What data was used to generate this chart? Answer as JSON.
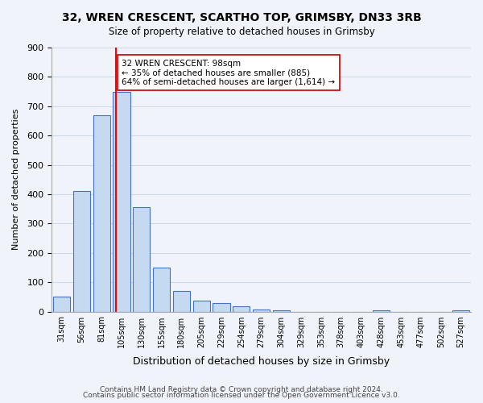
{
  "title": "32, WREN CRESCENT, SCARTHO TOP, GRIMSBY, DN33 3RB",
  "subtitle": "Size of property relative to detached houses in Grimsby",
  "xlabel": "Distribution of detached houses by size in Grimsby",
  "ylabel": "Number of detached properties",
  "bar_labels": [
    "31sqm",
    "56sqm",
    "81sqm",
    "105sqm",
    "130sqm",
    "155sqm",
    "180sqm",
    "205sqm",
    "229sqm",
    "254sqm",
    "279sqm",
    "304sqm",
    "329sqm",
    "353sqm",
    "378sqm",
    "403sqm",
    "428sqm",
    "453sqm",
    "477sqm",
    "502sqm",
    "527sqm"
  ],
  "bar_values": [
    50,
    410,
    670,
    750,
    355,
    150,
    70,
    37,
    30,
    17,
    8,
    3,
    0,
    0,
    0,
    0,
    3,
    0,
    0,
    0,
    3
  ],
  "bar_color": "#c5d9f1",
  "bar_edge_color": "#4472c4",
  "property_line_x": 3,
  "property_line_label": "32 WREN CRESCENT: 98sqm",
  "pct_smaller": "35%",
  "pct_smaller_count": "885",
  "pct_larger": "64%",
  "pct_larger_count": "1,614",
  "vline_color": "#ff0000",
  "annotation_box_edge": "#c00000",
  "ylim": [
    0,
    900
  ],
  "yticks": [
    0,
    100,
    200,
    300,
    400,
    500,
    600,
    700,
    800,
    900
  ],
  "grid_color": "#d0d8e8",
  "footer_line1": "Contains HM Land Registry data © Crown copyright and database right 2024.",
  "footer_line2": "Contains public sector information licensed under the Open Government Licence v3.0.",
  "background_color": "#f0f4fa"
}
